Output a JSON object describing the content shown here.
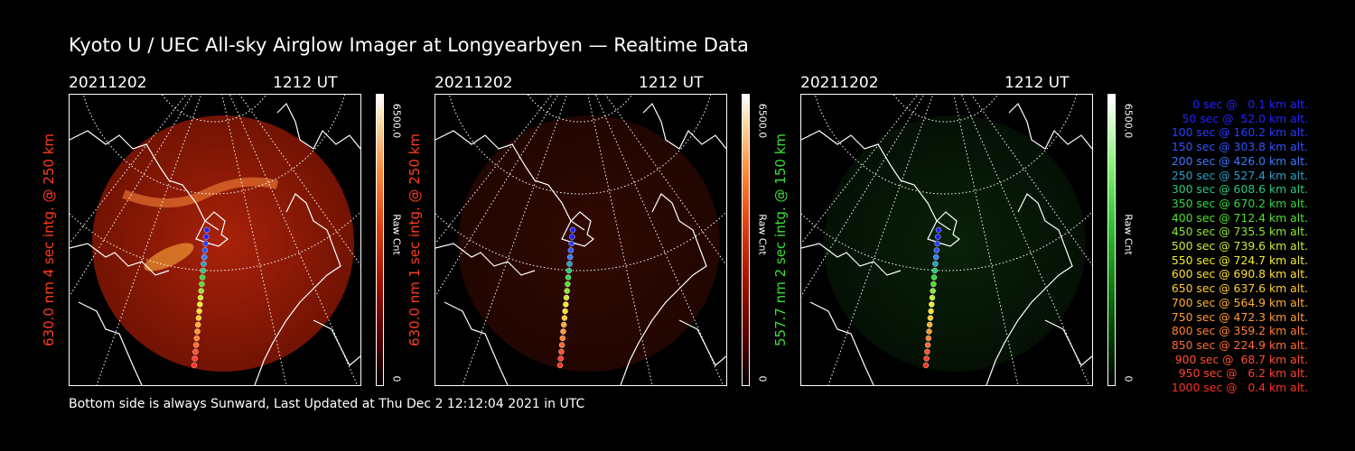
{
  "title": "Kyoto U / UEC All-sky Airglow Imager at Longyearbyen — Realtime Data",
  "footer": "Bottom side is always Sunward, Last Updated at Thu Dec  2 12:12:04 2021 in UTC",
  "panels": [
    {
      "date": "20211202",
      "time": "1212 UT",
      "ylabel": "630.0 nm 4 sec intg. @ 250 km",
      "ylabel_color": "#ff3b1e",
      "colorbar_max": "6500.0",
      "colorbar_unit": "Raw Cnt",
      "colorbar_min": "0",
      "colormap": "red",
      "intensity": 0.85
    },
    {
      "date": "20211202",
      "time": "1212 UT",
      "ylabel": "630.0 nm 1 sec intg. @ 250 km",
      "ylabel_color": "#ff3b1e",
      "colorbar_max": "6500.0",
      "colorbar_unit": "Raw Cnt",
      "colorbar_min": "0",
      "colormap": "red",
      "intensity": 0.25
    },
    {
      "date": "20211202",
      "time": "1212 UT",
      "ylabel": "557.7 nm 2 sec intg. @ 150 km",
      "ylabel_color": "#3adf3a",
      "colorbar_max": "6500.0",
      "colorbar_unit": "Raw Cnt",
      "colorbar_min": "0",
      "colormap": "green",
      "intensity": 0.3
    }
  ],
  "legend": [
    {
      "text": "0 sec @   0.1 km alt.",
      "color": "#2222ff"
    },
    {
      "text": "50 sec @  52.0 km alt.",
      "color": "#2222ff"
    },
    {
      "text": "100 sec @ 160.2 km alt.",
      "color": "#2a3cff"
    },
    {
      "text": "150 sec @ 303.8 km alt.",
      "color": "#2f55ff"
    },
    {
      "text": "200 sec @ 426.0 km alt.",
      "color": "#3a7aff"
    },
    {
      "text": "250 sec @ 527.4 km alt.",
      "color": "#2aa0c8"
    },
    {
      "text": "300 sec @ 608.6 km alt.",
      "color": "#28c880"
    },
    {
      "text": "350 sec @ 670.2 km alt.",
      "color": "#30d840"
    },
    {
      "text": "400 sec @ 712.4 km alt.",
      "color": "#50e030"
    },
    {
      "text": "450 sec @ 735.5 km alt.",
      "color": "#90e830"
    },
    {
      "text": "500 sec @ 739.6 km alt.",
      "color": "#c8ee30"
    },
    {
      "text": "550 sec @ 724.7 km alt.",
      "color": "#eeee30"
    },
    {
      "text": "600 sec @ 690.8 km alt.",
      "color": "#ffe030"
    },
    {
      "text": "650 sec @ 637.6 km alt.",
      "color": "#ffcc30"
    },
    {
      "text": "700 sec @ 564.9 km alt.",
      "color": "#ffb030"
    },
    {
      "text": "750 sec @ 472.3 km alt.",
      "color": "#ff9a30"
    },
    {
      "text": "800 sec @ 359.2 km alt.",
      "color": "#ff8030"
    },
    {
      "text": "850 sec @ 224.9 km alt.",
      "color": "#ff6a30"
    },
    {
      "text": "900 sec @  68.7 km alt.",
      "color": "#ff5030"
    },
    {
      "text": "950 sec @   6.2 km alt.",
      "color": "#ff4030"
    },
    {
      "text": "1000 sec @   0.4 km alt.",
      "color": "#ff3020"
    }
  ]
}
